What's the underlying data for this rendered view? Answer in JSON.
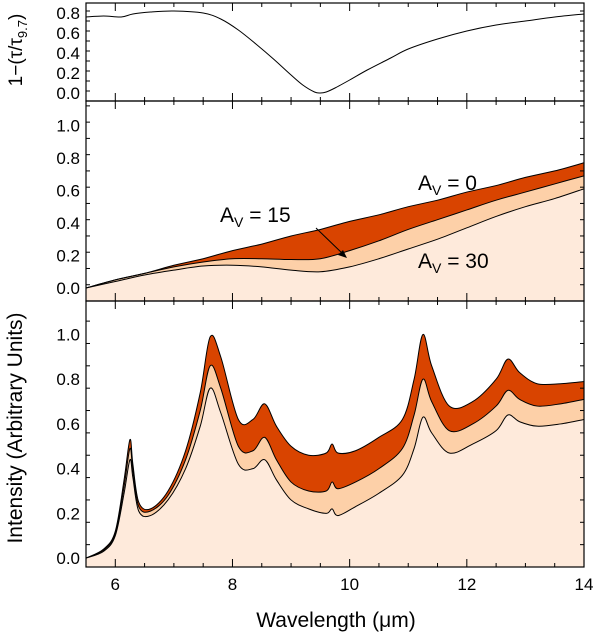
{
  "chart_data": {
    "type": "area",
    "xlabel": "Wavelength (μm)",
    "xlim": [
      5.5,
      14
    ],
    "xticks": [
      6,
      8,
      10,
      12,
      14
    ],
    "shared_ylabel": "Intensity (Arbitrary Units)",
    "colors": {
      "av0": "#d94400",
      "av15": "#fdd0a8",
      "av30": "#feeadb",
      "line": "#000000"
    },
    "panels": [
      {
        "name": "extinction-profile",
        "ylabel": "1−(τ/τ",
        "ylabel_sub": "9.7",
        "ylabel_close": ")",
        "ylim": [
          -0.08,
          0.9
        ],
        "yticks": [
          0.0,
          0.2,
          0.4,
          0.6,
          0.8
        ],
        "ytick_labels": [
          "0.0",
          "0.2",
          "0.4",
          "0.6",
          "0.8"
        ],
        "series": [
          {
            "name": "1-(tau/tau9.7)",
            "x": [
              5.5,
              5.8,
              6.1,
              6.3,
              6.6,
              7.0,
              7.5,
              7.8,
              8.1,
              8.4,
              8.7,
              9.0,
              9.2,
              9.4,
              9.5,
              9.6,
              9.75,
              10.0,
              10.3,
              10.7,
              11.0,
              11.5,
              12.0,
              12.5,
              13.0,
              13.5,
              14.0
            ],
            "y": [
              0.76,
              0.77,
              0.76,
              0.79,
              0.81,
              0.82,
              0.8,
              0.74,
              0.63,
              0.49,
              0.34,
              0.18,
              0.08,
              0.01,
              0.0,
              0.01,
              0.05,
              0.13,
              0.23,
              0.35,
              0.44,
              0.54,
              0.62,
              0.68,
              0.72,
              0.76,
              0.79
            ]
          }
        ]
      },
      {
        "name": "continuum",
        "ylim": [
          -0.08,
          1.15
        ],
        "yticks": [
          0.0,
          0.2,
          0.4,
          0.6,
          0.8,
          1.0
        ],
        "ytick_labels": [
          "0.0",
          "0.2",
          "0.4",
          "0.6",
          "0.8",
          "1.0"
        ],
        "x": [
          5.5,
          6.0,
          6.5,
          7.0,
          7.5,
          8.0,
          8.5,
          9.0,
          9.5,
          10.0,
          10.5,
          11.0,
          11.5,
          12.0,
          12.5,
          13.0,
          13.5,
          14.0
        ],
        "series": [
          {
            "name": "A_V = 0",
            "values": [
              0.0,
              0.05,
              0.09,
              0.14,
              0.18,
              0.23,
              0.27,
              0.32,
              0.36,
              0.41,
              0.45,
              0.5,
              0.54,
              0.59,
              0.63,
              0.68,
              0.72,
              0.77
            ]
          },
          {
            "name": "A_V = 15",
            "values": [
              0.0,
              0.05,
              0.09,
              0.13,
              0.16,
              0.18,
              0.18,
              0.175,
              0.18,
              0.23,
              0.29,
              0.36,
              0.42,
              0.48,
              0.54,
              0.59,
              0.64,
              0.69
            ]
          },
          {
            "name": "A_V = 30",
            "values": [
              0.0,
              0.04,
              0.08,
              0.11,
              0.135,
              0.14,
              0.13,
              0.11,
              0.1,
              0.13,
              0.18,
              0.24,
              0.3,
              0.37,
              0.44,
              0.5,
              0.55,
              0.61
            ]
          }
        ],
        "annotations": [
          {
            "base": "A",
            "sub": "V",
            "rest": " = 0"
          },
          {
            "base": "A",
            "sub": "V",
            "rest": " = 15"
          },
          {
            "base": "A",
            "sub": "V",
            "rest": " = 30"
          }
        ]
      },
      {
        "name": "pah-spectrum",
        "ylim": [
          -0.04,
          1.15
        ],
        "yticks": [
          0.0,
          0.2,
          0.4,
          0.6,
          0.8,
          1.0
        ],
        "ytick_labels": [
          "0.0",
          "0.2",
          "0.4",
          "0.6",
          "0.8",
          "1.0"
        ],
        "x": [
          5.5,
          5.8,
          6.0,
          6.15,
          6.25,
          6.3,
          6.4,
          6.6,
          6.9,
          7.2,
          7.45,
          7.62,
          7.8,
          8.1,
          8.35,
          8.55,
          8.75,
          9.0,
          9.3,
          9.6,
          9.7,
          9.8,
          10.1,
          10.5,
          10.9,
          11.1,
          11.25,
          11.4,
          11.7,
          12.1,
          12.5,
          12.7,
          12.9,
          13.2,
          13.6,
          14.0
        ],
        "series": [
          {
            "name": "A_V = 0",
            "values": [
              0.0,
              0.04,
              0.12,
              0.35,
              0.53,
              0.42,
              0.25,
              0.22,
              0.3,
              0.48,
              0.74,
              0.99,
              0.9,
              0.62,
              0.62,
              0.69,
              0.59,
              0.5,
              0.46,
              0.47,
              0.51,
              0.47,
              0.48,
              0.54,
              0.62,
              0.8,
              1.0,
              0.86,
              0.68,
              0.7,
              0.8,
              0.89,
              0.83,
              0.78,
              0.78,
              0.79
            ]
          },
          {
            "name": "A_V = 15",
            "values": [
              0.0,
              0.035,
              0.11,
              0.32,
              0.49,
              0.39,
              0.23,
              0.21,
              0.28,
              0.44,
              0.66,
              0.86,
              0.76,
              0.5,
              0.48,
              0.54,
              0.44,
              0.34,
              0.3,
              0.3,
              0.34,
              0.31,
              0.34,
              0.4,
              0.49,
              0.64,
              0.8,
              0.7,
              0.57,
              0.6,
              0.68,
              0.75,
              0.71,
              0.68,
              0.69,
              0.71
            ]
          },
          {
            "name": "A_V = 30",
            "values": [
              0.0,
              0.03,
              0.1,
              0.29,
              0.44,
              0.36,
              0.21,
              0.19,
              0.26,
              0.4,
              0.59,
              0.76,
              0.65,
              0.42,
              0.4,
              0.44,
              0.35,
              0.26,
              0.22,
              0.2,
              0.22,
              0.19,
              0.23,
              0.29,
              0.37,
              0.49,
              0.63,
              0.56,
              0.47,
              0.51,
              0.57,
              0.64,
              0.61,
              0.59,
              0.6,
              0.62
            ]
          }
        ]
      }
    ]
  }
}
